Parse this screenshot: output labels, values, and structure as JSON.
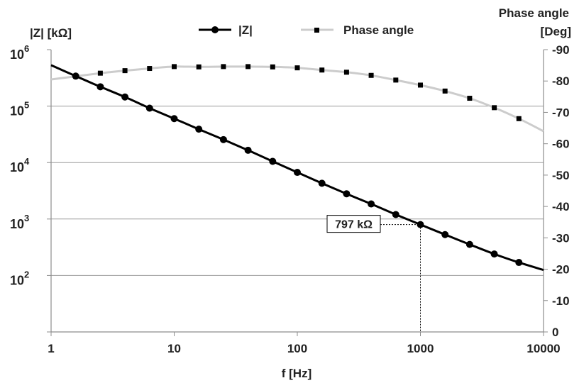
{
  "chart_data": {
    "type": "line",
    "title": "",
    "xlabel": "f [Hz]",
    "x_scale": "log",
    "xlim": [
      1,
      10000
    ],
    "x_ticks": [
      "1",
      "10",
      "100",
      "1000",
      "10000"
    ],
    "y_left": {
      "label": "|Z| [kΩ]",
      "scale": "log",
      "ylim": [
        10,
        1000000
      ],
      "ticks": [
        {
          "base": "10",
          "exp": "2",
          "value": 100
        },
        {
          "base": "10",
          "exp": "3",
          "value": 1000
        },
        {
          "base": "10",
          "exp": "4",
          "value": 10000
        },
        {
          "base": "10",
          "exp": "5",
          "value": 100000
        },
        {
          "base": "10",
          "exp": "6",
          "value": 1000000
        }
      ]
    },
    "y_right": {
      "label_lines": [
        "Phase angle",
        "[Deg]"
      ],
      "ylim": [
        0,
        -90
      ],
      "ticks": [
        "-90",
        "-80",
        "-70",
        "-60",
        "-50",
        "-40",
        "-30",
        "-20",
        "-10",
        "0"
      ]
    },
    "grid": "horizontal",
    "legend_position": "top",
    "series": [
      {
        "name": "|Z|",
        "axis": "left",
        "color": "#000000",
        "marker": "circle",
        "x": [
          1,
          1.585,
          2.512,
          3.981,
          6.31,
          10,
          15.85,
          25.12,
          39.81,
          63.1,
          100,
          158.5,
          251.2,
          398.1,
          631,
          1000,
          1585,
          2512,
          3981,
          6310,
          10000
        ],
        "values": [
          530000,
          340000,
          220000,
          145000,
          92000,
          60000,
          39000,
          25500,
          16500,
          10500,
          6700,
          4300,
          2800,
          1850,
          1200,
          797,
          530,
          355,
          240,
          170,
          125
        ],
        "markers_at": [
          1.585,
          2.512,
          3.981,
          6.31,
          10,
          15.85,
          25.12,
          39.81,
          63.1,
          100,
          158.5,
          251.2,
          398.1,
          631,
          1000,
          1585,
          2512,
          3981,
          6310
        ]
      },
      {
        "name": "Phase angle",
        "axis": "right",
        "color": "#cccccc",
        "marker_color": "#000000",
        "marker": "square",
        "x": [
          1,
          1.585,
          2.512,
          3.981,
          6.31,
          10,
          15.85,
          25.12,
          39.81,
          63.1,
          100,
          158.5,
          251.2,
          398.1,
          631,
          1000,
          1585,
          2512,
          3981,
          6310,
          10000
        ],
        "values": [
          -80.5,
          -81.5,
          -82.5,
          -83.3,
          -84,
          -84.6,
          -84.5,
          -84.6,
          -84.6,
          -84.5,
          -84.2,
          -83.5,
          -82.8,
          -81.8,
          -80.3,
          -78.7,
          -76.8,
          -74.5,
          -71.5,
          -68,
          -64
        ],
        "markers_at": [
          1.585,
          2.512,
          3.981,
          6.31,
          10,
          15.85,
          25.12,
          39.81,
          63.1,
          100,
          158.5,
          251.2,
          398.1,
          631,
          1000,
          1585,
          2512,
          3981,
          6310
        ]
      }
    ],
    "annotations": [
      {
        "text": "797 kΩ",
        "x": 1000,
        "y": 797,
        "axis": "left",
        "style": "dotted-crosshair"
      }
    ]
  }
}
